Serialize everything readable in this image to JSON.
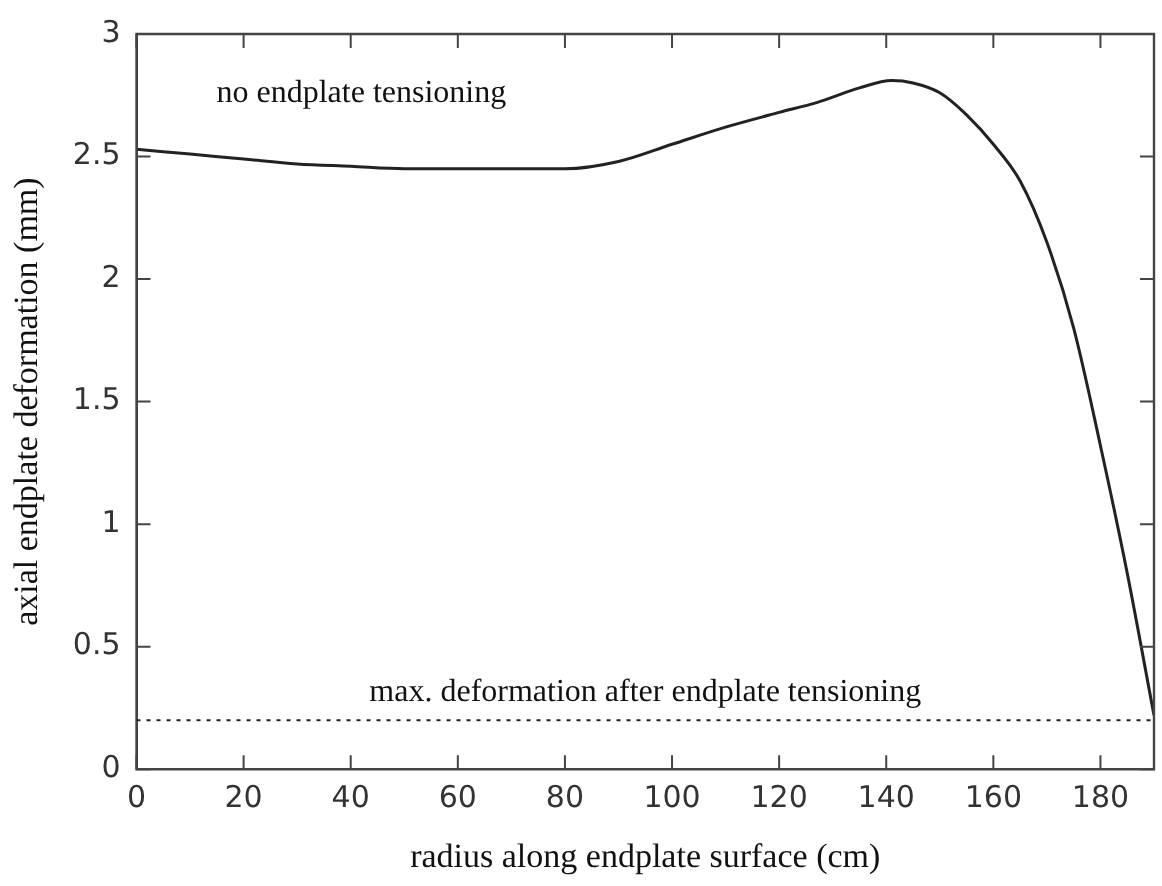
{
  "chart_data": {
    "type": "line",
    "xlabel": "radius along endplate surface (cm)",
    "ylabel": "axial endplate deformation (mm)",
    "x": [
      0,
      10,
      20,
      30,
      40,
      50,
      60,
      70,
      80,
      90,
      100,
      110,
      120,
      127,
      135,
      141,
      145,
      150,
      155,
      160,
      165,
      170,
      175,
      180,
      185,
      190
    ],
    "series": [
      {
        "color": "#222222",
        "values": [
          2.53,
          2.51,
          2.49,
          2.47,
          2.46,
          2.45,
          2.45,
          2.45,
          2.45,
          2.48,
          2.55,
          2.62,
          2.68,
          2.72,
          2.78,
          2.81,
          2.8,
          2.76,
          2.67,
          2.55,
          2.4,
          2.15,
          1.8,
          1.32,
          0.8,
          0.22
        ]
      }
    ],
    "xlim": [
      0,
      190
    ],
    "xticks": [
      0,
      20,
      40,
      60,
      80,
      100,
      120,
      140,
      160,
      180
    ],
    "ylim": [
      0,
      3
    ],
    "yticks": [
      0,
      0.5,
      1,
      1.5,
      2,
      2.5,
      3
    ],
    "grid": false,
    "legend": false,
    "marker": "none",
    "line_style": "solid",
    "ref_lines": [
      {
        "axis": "y",
        "value": 0.2,
        "label": "max. deformation after endplate tensioning",
        "line_style": "dotted",
        "color": "#222222"
      }
    ],
    "annotations": [
      "no endplate tensioning"
    ]
  }
}
